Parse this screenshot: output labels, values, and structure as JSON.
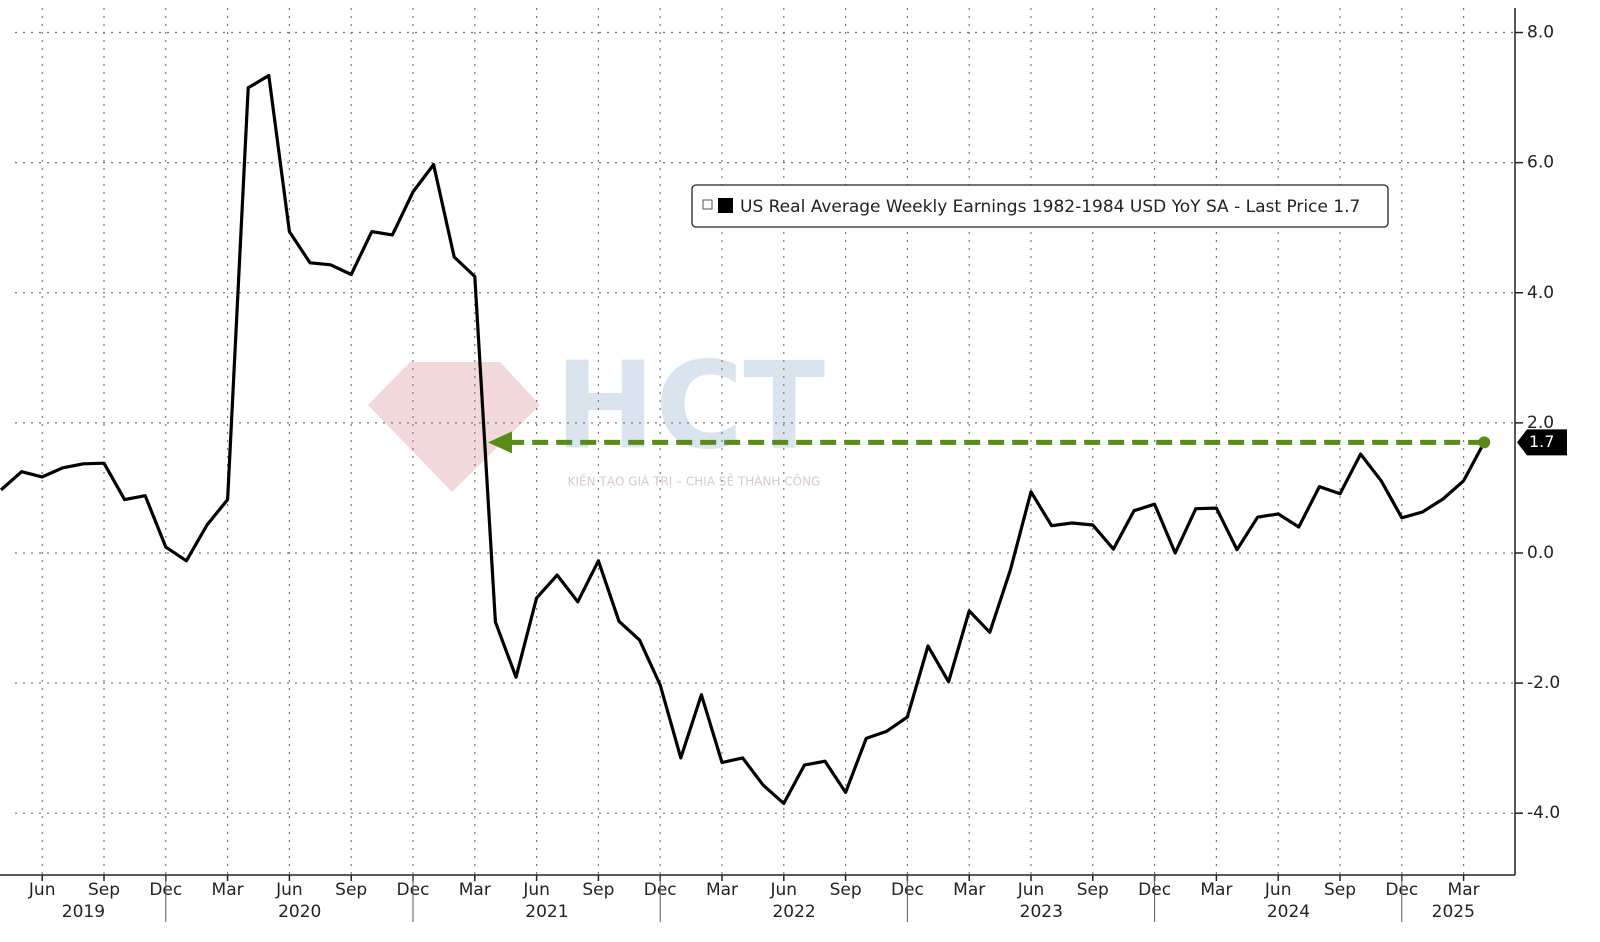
{
  "chart_data": {
    "type": "line",
    "legend": "US Real Average Weekly Earnings 1982-1984 USD YoY SA - Last Price 1.7",
    "legend_position": "top-center",
    "watermark": {
      "title": "HCT",
      "subtitle": "KIẾN TẠO GIÁ TRỊ – CHIA SẺ THÀNH CÔNG"
    },
    "x": [
      "2019-04",
      "2019-05",
      "2019-06",
      "2019-07",
      "2019-08",
      "2019-09",
      "2019-10",
      "2019-11",
      "2019-12",
      "2020-01",
      "2020-02",
      "2020-03",
      "2020-04",
      "2020-05",
      "2020-06",
      "2020-07",
      "2020-08",
      "2020-09",
      "2020-10",
      "2020-11",
      "2020-12",
      "2021-01",
      "2021-02",
      "2021-03",
      "2021-04",
      "2021-05",
      "2021-06",
      "2021-07",
      "2021-08",
      "2021-09",
      "2021-10",
      "2021-11",
      "2021-12",
      "2022-01",
      "2022-02",
      "2022-03",
      "2022-04",
      "2022-05",
      "2022-06",
      "2022-07",
      "2022-08",
      "2022-09",
      "2022-10",
      "2022-11",
      "2022-12",
      "2023-01",
      "2023-02",
      "2023-03",
      "2023-04",
      "2023-05",
      "2023-06",
      "2023-07",
      "2023-08",
      "2023-09",
      "2023-10",
      "2023-11",
      "2023-12",
      "2024-01",
      "2024-02",
      "2024-03",
      "2024-04",
      "2024-05",
      "2024-06",
      "2024-07",
      "2024-08",
      "2024-09",
      "2024-10",
      "2024-11",
      "2024-12",
      "2025-01",
      "2025-02",
      "2025-03",
      "2025-04"
    ],
    "series": [
      {
        "name": "US Real Average Weekly Earnings 1982-1984 USD YoY SA",
        "color": "#000000",
        "values": [
          0.97,
          1.25,
          1.17,
          1.31,
          1.37,
          1.38,
          0.82,
          0.88,
          0.09,
          -0.12,
          0.43,
          0.82,
          7.15,
          7.34,
          4.94,
          4.46,
          4.43,
          4.28,
          4.94,
          4.89,
          5.55,
          5.97,
          4.55,
          4.25,
          -1.06,
          -1.91,
          -0.69,
          -0.34,
          -0.75,
          -0.12,
          -1.05,
          -1.34,
          -2.03,
          -3.15,
          -2.18,
          -3.22,
          -3.15,
          -3.57,
          -3.85,
          -3.26,
          -3.2,
          -3.68,
          -2.85,
          -2.74,
          -2.52,
          -1.43,
          -1.98,
          -0.89,
          -1.22,
          -0.26,
          0.94,
          0.42,
          0.46,
          0.43,
          0.06,
          0.65,
          0.75,
          0.0,
          0.68,
          0.69,
          0.05,
          0.55,
          0.6,
          0.4,
          1.02,
          0.91,
          1.52,
          1.11,
          0.54,
          0.63,
          0.83,
          1.11,
          1.7
        ]
      }
    ],
    "last_price": {
      "value": 1.7,
      "label": "1.7"
    },
    "arrow_color": "#5a8a1a",
    "ylim": [
      -4.95,
      8.5
    ],
    "yticks": [
      {
        "value": -4,
        "label": "-4.0"
      },
      {
        "value": -2,
        "label": "-2.0"
      },
      {
        "value": 0,
        "label": "0.0"
      },
      {
        "value": 2,
        "label": "2.0"
      },
      {
        "value": 4,
        "label": "4.0"
      },
      {
        "value": 6,
        "label": "6.0"
      },
      {
        "value": 8,
        "label": "8.0"
      }
    ],
    "xticks": [
      {
        "value": "2019-06",
        "label": "Jun"
      },
      {
        "value": "2019-09",
        "label": "Sep"
      },
      {
        "value": "2019-12",
        "label": "Dec"
      },
      {
        "value": "2020-03",
        "label": "Mar"
      },
      {
        "value": "2020-06",
        "label": "Jun"
      },
      {
        "value": "2020-09",
        "label": "Sep"
      },
      {
        "value": "2020-12",
        "label": "Dec"
      },
      {
        "value": "2021-03",
        "label": "Mar"
      },
      {
        "value": "2021-06",
        "label": "Jun"
      },
      {
        "value": "2021-09",
        "label": "Sep"
      },
      {
        "value": "2021-12",
        "label": "Dec"
      },
      {
        "value": "2022-03",
        "label": "Mar"
      },
      {
        "value": "2022-06",
        "label": "Jun"
      },
      {
        "value": "2022-09",
        "label": "Sep"
      },
      {
        "value": "2022-12",
        "label": "Dec"
      },
      {
        "value": "2023-03",
        "label": "Mar"
      },
      {
        "value": "2023-06",
        "label": "Jun"
      },
      {
        "value": "2023-09",
        "label": "Sep"
      },
      {
        "value": "2023-12",
        "label": "Dec"
      },
      {
        "value": "2024-03",
        "label": "Mar"
      },
      {
        "value": "2024-06",
        "label": "Jun"
      },
      {
        "value": "2024-09",
        "label": "Sep"
      },
      {
        "value": "2024-12",
        "label": "Dec"
      },
      {
        "value": "2025-03",
        "label": "Mar"
      }
    ],
    "years": [
      "2019",
      "2020",
      "2021",
      "2022",
      "2023",
      "2024",
      "2025"
    ],
    "grid": true
  }
}
